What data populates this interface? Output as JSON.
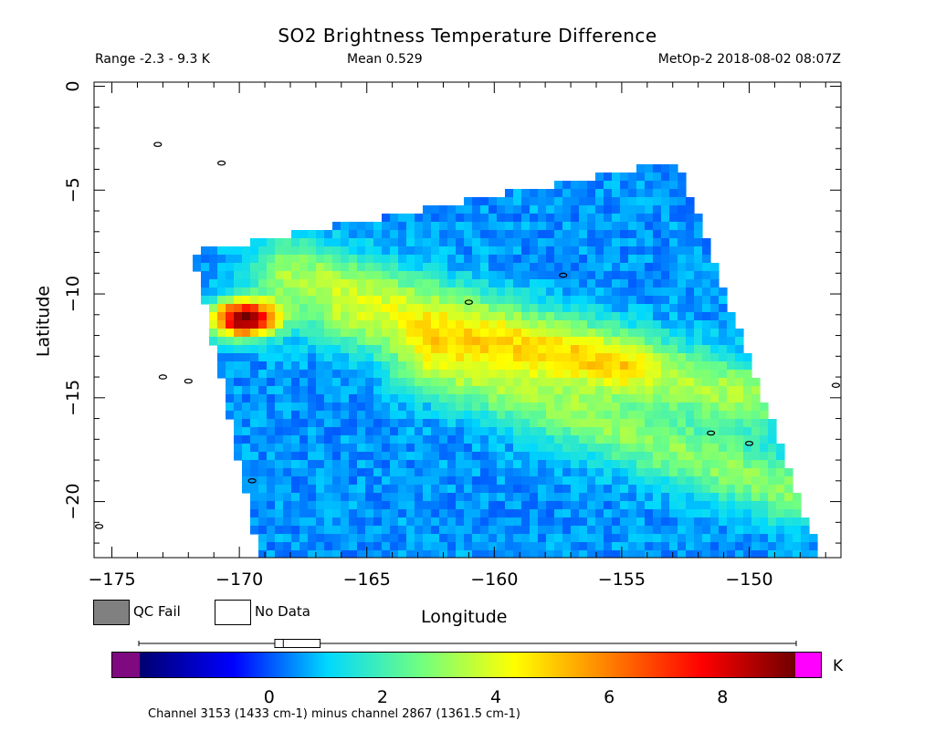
{
  "chart_data": {
    "type": "heatmap",
    "title": "SO2 Brightness Temperature Difference",
    "range_text": "Range -2.3 - 9.3 K",
    "mean_text": "Mean 0.529",
    "satellite_text": "MetOp-2 2018-08-02 08:07Z",
    "xlabel": "Longitude",
    "ylabel": "Latitude",
    "xlim": [
      -175.7,
      -146.4
    ],
    "ylim": [
      -22.7,
      0.2
    ],
    "x_ticks": [
      -175,
      -170,
      -165,
      -160,
      -155,
      -150
    ],
    "x_tick_labels": [
      "−175",
      "−170",
      "−165",
      "−160",
      "−155",
      "−150"
    ],
    "y_ticks": [
      0,
      -5,
      -10,
      -15,
      -20
    ],
    "y_tick_labels": [
      "0",
      "−5",
      "−10",
      "−15",
      "−20"
    ],
    "swath_corners": [
      [
        -171.8,
        -8.0
      ],
      [
        -152.8,
        -3.6
      ],
      [
        -147.2,
        -22.7
      ],
      [
        -169.2,
        -22.7
      ]
    ],
    "hotspot": {
      "lon": -169.8,
      "lat": -11.2,
      "peak_value": 9.3
    },
    "background_value": 0.5,
    "bands": [
      {
        "from": [
          -168.0,
          -9.0
        ],
        "to": [
          -150.0,
          -15.0
        ],
        "value": 2.8,
        "width_deg": 1.2
      },
      {
        "from": [
          -162.5,
          -13.5
        ],
        "to": [
          -148.5,
          -19.5
        ],
        "value": 2.4,
        "width_deg": 1.1
      },
      {
        "from": [
          -166.0,
          -11.5
        ],
        "to": [
          -155.0,
          -13.5
        ],
        "value": 1.6,
        "width_deg": 1.0
      }
    ],
    "coastlines": [
      [
        -173.0,
        -14.0
      ],
      [
        -172.0,
        -14.2
      ],
      [
        -170.7,
        -3.7
      ],
      [
        -173.2,
        -2.8
      ],
      [
        -150.0,
        -17.2
      ],
      [
        -151.5,
        -16.7
      ],
      [
        -161.0,
        -10.4
      ],
      [
        -157.3,
        -9.1
      ],
      [
        -169.5,
        -19.0
      ],
      [
        -175.5,
        -21.2
      ],
      [
        -146.6,
        -14.4
      ]
    ],
    "qc_fail_label": "QC Fail",
    "no_data_label": "No Data",
    "colorbar": {
      "min": -2.3,
      "max": 9.3,
      "unit": "K",
      "ticks": [
        0,
        2,
        4,
        6,
        8
      ],
      "stops": [
        "#000070",
        "#0000ff",
        "#00d8ff",
        "#70ff80",
        "#ffff00",
        "#ff8000",
        "#ff0000",
        "#700000"
      ],
      "under_color": "#7f0a7f",
      "over_color": "#ff00ff",
      "box": {
        "q1": 0.1,
        "median": 0.25,
        "q3": 0.9
      }
    },
    "caption": "Channel 3153 (1433 cm-1) minus channel 2867 (1361.5 cm-1)"
  }
}
